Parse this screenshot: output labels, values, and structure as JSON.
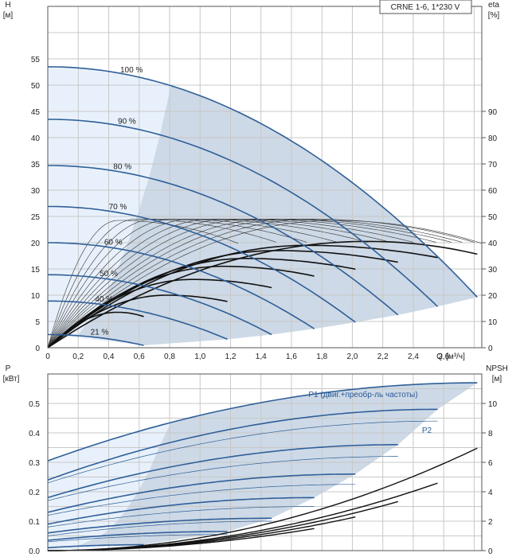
{
  "chart_data": [
    {
      "type": "line",
      "name_box": "CRNE 1-6, 1*230 V",
      "ylabel": "H",
      "yunit": "[м]",
      "y2label": "eta",
      "y2unit": "[%]",
      "xlabel": "Q",
      "xunit": "[м³/ч]",
      "xlim": [
        0,
        2.85
      ],
      "ylim": [
        0,
        65
      ],
      "y2lim": [
        0,
        130
      ],
      "xticks": [
        "0",
        "0,2",
        "0,4",
        "0,6",
        "0,8",
        "1,0",
        "1,2",
        "1,4",
        "1,6",
        "1,8",
        "2,0",
        "2,2",
        "2,4",
        "2,6"
      ],
      "xtick_values": [
        0,
        0.2,
        0.4,
        0.6,
        0.8,
        1.0,
        1.2,
        1.4,
        1.6,
        1.8,
        2.0,
        2.2,
        2.4,
        2.6
      ],
      "yticks": [
        "0",
        "5",
        "10",
        "15",
        "20",
        "25",
        "30",
        "35",
        "40",
        "45",
        "50",
        "55"
      ],
      "ytick_values": [
        0,
        5,
        10,
        15,
        20,
        25,
        30,
        35,
        40,
        45,
        50,
        55
      ],
      "y2ticks": [
        "0",
        "10",
        "20",
        "30",
        "40",
        "50",
        "60",
        "70",
        "80",
        "90"
      ],
      "y2tick_values": [
        0,
        10,
        20,
        30,
        40,
        50,
        60,
        70,
        80,
        90
      ],
      "speeds": [
        {
          "label": "100 %",
          "h0": 53.5,
          "qmax": 2.82
        },
        {
          "label": "90 %",
          "h0": 43.5,
          "qmax": 2.56
        },
        {
          "label": "80 %",
          "h0": 34.7,
          "qmax": 2.3
        },
        {
          "label": "70 %",
          "h0": 26.9,
          "qmax": 2.02
        },
        {
          "label": "60 %",
          "h0": 20,
          "qmax": 1.75
        },
        {
          "label": "50 %",
          "h0": 13.9,
          "qmax": 1.47
        },
        {
          "label": "40 %",
          "h0": 8.9,
          "qmax": 1.18
        },
        {
          "label": "21 %",
          "h0": 2.5,
          "qmax": 0.63
        }
      ],
      "eta_curves": [
        {
          "q_peak": 0.46,
          "eta_peak": 48.5,
          "qmax": 1.25
        },
        {
          "q_peak": 0.58,
          "eta_peak": 49,
          "qmax": 1.5
        },
        {
          "q_peak": 0.7,
          "eta_peak": 49,
          "qmax": 1.7
        },
        {
          "q_peak": 0.82,
          "eta_peak": 49,
          "qmax": 1.9
        },
        {
          "q_peak": 0.95,
          "eta_peak": 49,
          "qmax": 2.1
        },
        {
          "q_peak": 1.08,
          "eta_peak": 49,
          "qmax": 2.25
        },
        {
          "q_peak": 1.2,
          "eta_peak": 49,
          "qmax": 2.4
        },
        {
          "q_peak": 1.33,
          "eta_peak": 49,
          "qmax": 2.55
        },
        {
          "q_peak": 1.47,
          "eta_peak": 49,
          "qmax": 2.65
        },
        {
          "q_peak": 1.6,
          "eta_peak": 49,
          "qmax": 2.72
        },
        {
          "q_peak": 1.75,
          "eta_peak": 49,
          "qmax": 2.8
        },
        {
          "q_peak": 1.88,
          "eta_peak": 48.5,
          "qmax": 2.85
        }
      ],
      "eta_bold": [
        {
          "q_peak": 0.46,
          "eta_peak": 13.5,
          "qmax": 0.63
        },
        {
          "q_peak": 0.78,
          "eta_peak": 20,
          "qmax": 1.18
        },
        {
          "q_peak": 0.95,
          "eta_peak": 26,
          "qmax": 1.47
        },
        {
          "q_peak": 1.15,
          "eta_peak": 31,
          "qmax": 1.75
        },
        {
          "q_peak": 1.3,
          "eta_peak": 34,
          "qmax": 2.02
        },
        {
          "q_peak": 1.5,
          "eta_peak": 37,
          "qmax": 2.3
        },
        {
          "q_peak": 1.7,
          "eta_peak": 39,
          "qmax": 2.56
        },
        {
          "q_peak": 2.1,
          "eta_peak": 40.5,
          "qmax": 2.82
        }
      ]
    },
    {
      "type": "line",
      "ylabel": "P",
      "yunit": "[кВт]",
      "y2label": "NPSH",
      "y2unit": "[м]",
      "xlim": [
        0,
        2.85
      ],
      "ylim": [
        0,
        0.6
      ],
      "y2lim": [
        0,
        12
      ],
      "yticks": [
        "0.0",
        "0.1",
        "0.2",
        "0.3",
        "0.4",
        "0.5"
      ],
      "ytick_values": [
        0,
        0.1,
        0.2,
        0.3,
        0.4,
        0.5
      ],
      "y2ticks": [
        "0",
        "2",
        "4",
        "6",
        "8",
        "10"
      ],
      "y2tick_values": [
        0,
        2,
        4,
        6,
        8,
        10
      ],
      "series_labels": [
        "P1 (двиг.+преобр-ль частоты)",
        "P2"
      ],
      "p1_curves": [
        {
          "p0": 0.305,
          "pend": 0.57,
          "qmax": 2.82
        },
        {
          "p0": 0.24,
          "pend": 0.48,
          "qmax": 2.56
        },
        {
          "p0": 0.18,
          "pend": 0.36,
          "qmax": 2.3
        },
        {
          "p0": 0.13,
          "pend": 0.26,
          "qmax": 2.02
        },
        {
          "p0": 0.09,
          "pend": 0.18,
          "qmax": 1.75
        },
        {
          "p0": 0.06,
          "pend": 0.11,
          "qmax": 1.47
        },
        {
          "p0": 0.035,
          "pend": 0.065,
          "qmax": 1.18
        },
        {
          "p0": 0.01,
          "pend": 0.02,
          "qmax": 0.63
        }
      ],
      "p2_curves": [
        {
          "p0": 0.23,
          "pend": 0.44,
          "qmax": 2.56
        },
        {
          "p0": 0.17,
          "pend": 0.32,
          "qmax": 2.3
        },
        {
          "p0": 0.12,
          "pend": 0.225,
          "qmax": 2.02
        },
        {
          "p0": 0.08,
          "pend": 0.15,
          "qmax": 1.75
        },
        {
          "p0": 0.05,
          "pend": 0.1,
          "qmax": 1.47
        },
        {
          "p0": 0.03,
          "pend": 0.055,
          "qmax": 1.18
        }
      ],
      "npsh_curves": [
        {
          "k": 0.14,
          "qmax": 1.75
        },
        {
          "k": 0.16,
          "qmax": 2.02
        },
        {
          "k": 0.18,
          "qmax": 2.3
        },
        {
          "k": 0.2,
          "qmax": 2.56
        },
        {
          "k": 0.25,
          "qmax": 2.82
        }
      ]
    }
  ]
}
